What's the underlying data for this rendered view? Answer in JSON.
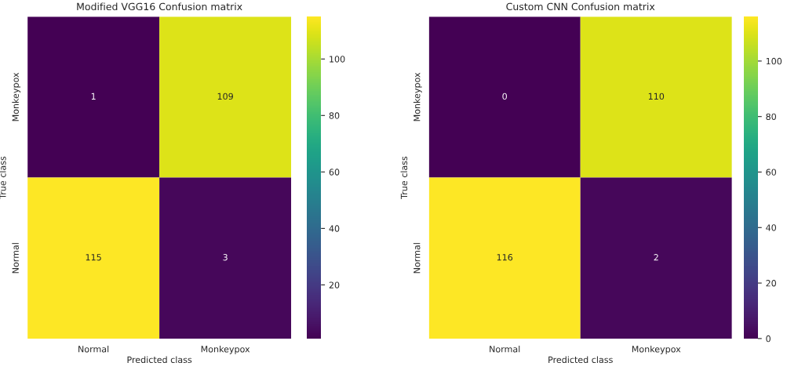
{
  "chart_data": [
    {
      "type": "heatmap",
      "title": "Modified VGG16 Confusion matrix",
      "xlabel": "Predicted class",
      "ylabel": "True class",
      "categories": [
        "Normal",
        "Monkeypox"
      ],
      "y_categories": [
        "Monkeypox",
        "Normal"
      ],
      "cells": [
        [
          1,
          109
        ],
        [
          115,
          3
        ]
      ],
      "clim": [
        1,
        115
      ],
      "cticks": [
        20,
        40,
        60,
        80,
        100
      ],
      "data_labels": true
    },
    {
      "type": "heatmap",
      "title": "Custom CNN Confusion matrix",
      "xlabel": "Predicted class",
      "ylabel": "True class",
      "categories": [
        "Normal",
        "Monkeypox"
      ],
      "y_categories": [
        "Monkeypox",
        "Normal"
      ],
      "cells": [
        [
          0,
          110
        ],
        [
          116,
          2
        ]
      ],
      "clim": [
        0,
        116
      ],
      "cticks": [
        0,
        20,
        40,
        60,
        80,
        100
      ],
      "data_labels": true
    }
  ]
}
